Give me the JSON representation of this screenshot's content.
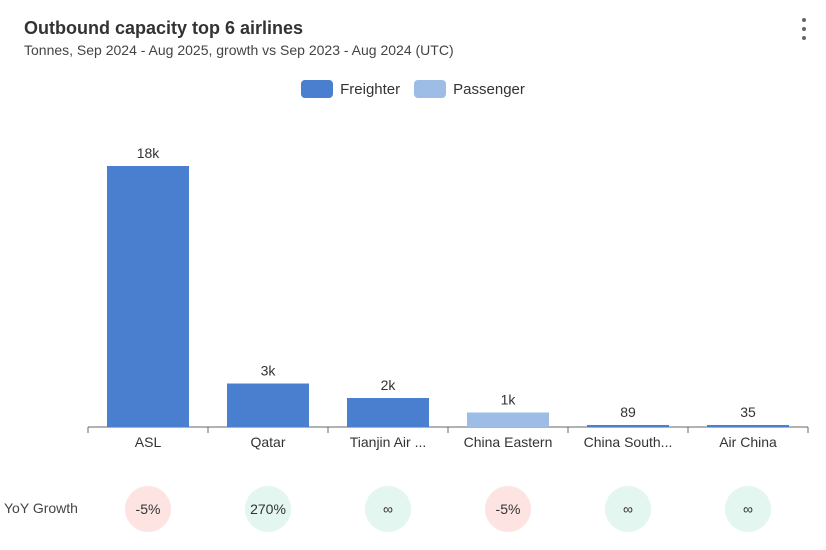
{
  "header": {
    "title": "Outbound capacity top 6 airlines",
    "subtitle": "Tonnes, Sep 2024 - Aug 2025, growth vs Sep 2023 - Aug 2024 (UTC)",
    "menu_icon": "kebab-menu-icon"
  },
  "colors": {
    "freighter": "#4a7fd0",
    "passenger": "#9dbde6",
    "negative_badge": "#fde4e2",
    "positive_badge": "#e3f6f0",
    "axis": "#666666"
  },
  "chart_data": {
    "type": "bar",
    "title": "Outbound capacity top 6 airlines",
    "subtitle": "Tonnes, Sep 2024 - Aug 2025, growth vs Sep 2023 - Aug 2024 (UTC)",
    "categories": [
      "ASL",
      "Qatar",
      "Tianjin Air ...",
      "China Eastern",
      "China South...",
      "Air China"
    ],
    "values": [
      18000,
      3000,
      2000,
      1000,
      89,
      35
    ],
    "value_labels": [
      "18k",
      "3k",
      "2k",
      "1k",
      "89",
      "35"
    ],
    "bar_types": [
      "Freighter",
      "Freighter",
      "Freighter",
      "Passenger",
      "Freighter",
      "Freighter"
    ],
    "legend": [
      "Freighter",
      "Passenger"
    ],
    "legend_position": "top-center",
    "ylim": [
      0,
      18000
    ],
    "grid": false
  },
  "growth": {
    "label": "YoY Growth",
    "values": [
      "-5%",
      "270%",
      "∞",
      "-5%",
      "∞",
      "∞"
    ],
    "signs": [
      "negative",
      "positive",
      "positive",
      "negative",
      "positive",
      "positive"
    ]
  }
}
